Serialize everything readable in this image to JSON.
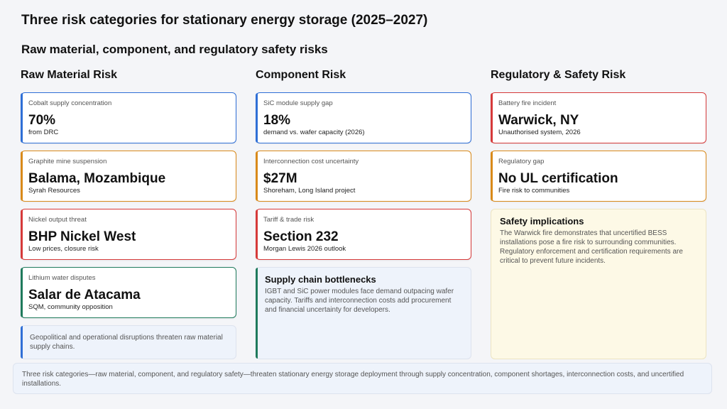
{
  "title": "Three risk categories for stationary energy storage (2025–2027)",
  "subtitle": "Raw material, component, and regulatory safety risks",
  "colors": {
    "blue": "#2f6fd6",
    "orange": "#d98a1a",
    "red": "#d63a3a",
    "green": "#1f7a5c"
  },
  "columns": {
    "raw": {
      "heading": "Raw Material Risk",
      "cards": [
        {
          "label": "Cobalt supply concentration",
          "value": "70%",
          "sub": "from DRC"
        },
        {
          "label": "Graphite mine suspension",
          "value": "Balama, Mozambique",
          "sub": "Syrah Resources"
        },
        {
          "label": "Nickel output threat",
          "value": "BHP Nickel West",
          "sub": "Low prices, closure risk"
        },
        {
          "label": "Lithium water disputes",
          "value": "Salar de Atacama",
          "sub": "SQM, community opposition"
        }
      ],
      "note": "Geopolitical and operational disruptions threaten raw material supply chains."
    },
    "component": {
      "heading": "Component Risk",
      "cards": [
        {
          "label": "SiC module supply gap",
          "value": "18%",
          "sub": "demand vs. wafer capacity (2026)"
        },
        {
          "label": "Interconnection cost uncertainty",
          "value": "$27M",
          "sub": "Shoreham, Long Island project"
        },
        {
          "label": "Tariff & trade risk",
          "value": "Section 232",
          "sub": "Morgan Lewis 2026 outlook"
        }
      ],
      "note_title": "Supply chain bottlenecks",
      "note": "IGBT and SiC power modules face demand outpacing wafer capacity. Tariffs and interconnection costs add procurement and financial uncertainty for developers."
    },
    "regulatory": {
      "heading": "Regulatory & Safety Risk",
      "cards": [
        {
          "label": "Battery fire incident",
          "value": "Warwick, NY",
          "sub": "Unauthorised system, 2026"
        },
        {
          "label": "Regulatory gap",
          "value": "No UL certification",
          "sub": "Fire risk to communities"
        }
      ],
      "note_title": "Safety implications",
      "note": "The Warwick fire demonstrates that uncertified BESS installations pose a fire risk to surrounding communities. Regulatory enforcement and certification requirements are critical to prevent future incidents."
    }
  },
  "footer": "Three risk categories—raw material, component, and regulatory safety—threaten stationary energy storage deployment through supply concentration, component shortages, interconnection costs, and uncertified installations."
}
